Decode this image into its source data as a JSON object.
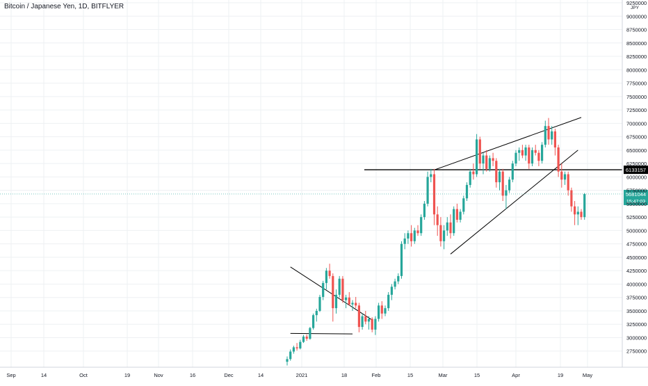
{
  "chart_data": {
    "type": "candlestick",
    "title": "Bitcoin / Japanese Yen, 1D, BITFLYER",
    "currency": "JPY",
    "ylim": [
      2500000,
      9250000
    ],
    "y_ticks": [
      2750000,
      3000000,
      3250000,
      3500000,
      3750000,
      4000000,
      4250000,
      4500000,
      4750000,
      5000000,
      5250000,
      5500000,
      5750000,
      6000000,
      6250000,
      6500000,
      6750000,
      7000000,
      7250000,
      7500000,
      7750000,
      8000000,
      8250000,
      8500000,
      8750000,
      9000000,
      9250000
    ],
    "x_ticks": [
      "Sep",
      "14",
      "Oct",
      "19",
      "Nov",
      "16",
      "Dec",
      "14",
      "2021",
      "18",
      "Feb",
      "15",
      "Mar",
      "15",
      "Apr",
      "19",
      "May"
    ],
    "grid": true,
    "colors": {
      "up": "#26a69a",
      "down": "#ef5350",
      "line": "#000000"
    },
    "horizontal_level": {
      "value": 6133157,
      "label": "6133157"
    },
    "last_price": {
      "value": 5681044,
      "label": "5681044",
      "countdown": "15:47:03"
    },
    "candles": [
      {
        "o": 2550000,
        "h": 2650000,
        "l": 2480000,
        "c": 2600000
      },
      {
        "o": 2600000,
        "h": 2780000,
        "l": 2570000,
        "c": 2740000
      },
      {
        "o": 2740000,
        "h": 2850000,
        "l": 2700000,
        "c": 2820000
      },
      {
        "o": 2820000,
        "h": 2900000,
        "l": 2760000,
        "c": 2800000
      },
      {
        "o": 2800000,
        "h": 2960000,
        "l": 2780000,
        "c": 2920000
      },
      {
        "o": 2920000,
        "h": 3050000,
        "l": 2900000,
        "c": 3020000
      },
      {
        "o": 3020000,
        "h": 3060000,
        "l": 2940000,
        "c": 2980000
      },
      {
        "o": 2980000,
        "h": 3200000,
        "l": 2960000,
        "c": 3180000
      },
      {
        "o": 3180000,
        "h": 3450000,
        "l": 3150000,
        "c": 3420000
      },
      {
        "o": 3420000,
        "h": 3540000,
        "l": 3300000,
        "c": 3500000
      },
      {
        "o": 3500000,
        "h": 3800000,
        "l": 3480000,
        "c": 3760000
      },
      {
        "o": 3760000,
        "h": 4060000,
        "l": 3700000,
        "c": 4020000
      },
      {
        "o": 4020000,
        "h": 4300000,
        "l": 3900000,
        "c": 4250000
      },
      {
        "o": 4250000,
        "h": 4380000,
        "l": 4100000,
        "c": 4150000
      },
      {
        "o": 4150000,
        "h": 4200000,
        "l": 3300000,
        "c": 3550000
      },
      {
        "o": 3550000,
        "h": 3900000,
        "l": 3450000,
        "c": 3800000
      },
      {
        "o": 3800000,
        "h": 4150000,
        "l": 3750000,
        "c": 4100000
      },
      {
        "o": 4100000,
        "h": 4150000,
        "l": 3650000,
        "c": 3700000
      },
      {
        "o": 3700000,
        "h": 3800000,
        "l": 3550000,
        "c": 3750000
      },
      {
        "o": 3750000,
        "h": 3850000,
        "l": 3600000,
        "c": 3620000
      },
      {
        "o": 3620000,
        "h": 3700000,
        "l": 3500000,
        "c": 3650000
      },
      {
        "o": 3650000,
        "h": 3760000,
        "l": 3550000,
        "c": 3600000
      },
      {
        "o": 3600000,
        "h": 3650000,
        "l": 3100000,
        "c": 3200000
      },
      {
        "o": 3200000,
        "h": 3450000,
        "l": 3150000,
        "c": 3400000
      },
      {
        "o": 3400000,
        "h": 3500000,
        "l": 3250000,
        "c": 3300000
      },
      {
        "o": 3300000,
        "h": 3400000,
        "l": 3150000,
        "c": 3350000
      },
      {
        "o": 3350000,
        "h": 3380000,
        "l": 3100000,
        "c": 3150000
      },
      {
        "o": 3150000,
        "h": 3400000,
        "l": 3050000,
        "c": 3350000
      },
      {
        "o": 3350000,
        "h": 3650000,
        "l": 3300000,
        "c": 3600000
      },
      {
        "o": 3600000,
        "h": 3680000,
        "l": 3350000,
        "c": 3450000
      },
      {
        "o": 3450000,
        "h": 3600000,
        "l": 3400000,
        "c": 3550000
      },
      {
        "o": 3550000,
        "h": 3850000,
        "l": 3500000,
        "c": 3800000
      },
      {
        "o": 3800000,
        "h": 4000000,
        "l": 3700000,
        "c": 3950000
      },
      {
        "o": 3950000,
        "h": 4100000,
        "l": 3900000,
        "c": 4050000
      },
      {
        "o": 4050000,
        "h": 4200000,
        "l": 4000000,
        "c": 4150000
      },
      {
        "o": 4150000,
        "h": 4800000,
        "l": 4100000,
        "c": 4750000
      },
      {
        "o": 4750000,
        "h": 4950000,
        "l": 4650000,
        "c": 4850000
      },
      {
        "o": 4850000,
        "h": 5000000,
        "l": 4750000,
        "c": 4950000
      },
      {
        "o": 4950000,
        "h": 5100000,
        "l": 4700000,
        "c": 4800000
      },
      {
        "o": 4800000,
        "h": 5050000,
        "l": 4750000,
        "c": 5000000
      },
      {
        "o": 5000000,
        "h": 5100000,
        "l": 4900000,
        "c": 4950000
      },
      {
        "o": 4950000,
        "h": 5300000,
        "l": 4900000,
        "c": 5250000
      },
      {
        "o": 5250000,
        "h": 5550000,
        "l": 5200000,
        "c": 5500000
      },
      {
        "o": 5500000,
        "h": 6100000,
        "l": 5450000,
        "c": 6000000
      },
      {
        "o": 6000000,
        "h": 6150000,
        "l": 5900000,
        "c": 6050000
      },
      {
        "o": 6050000,
        "h": 6150000,
        "l": 5100000,
        "c": 5300000
      },
      {
        "o": 5300000,
        "h": 5450000,
        "l": 4900000,
        "c": 5100000
      },
      {
        "o": 5100000,
        "h": 5250000,
        "l": 4700000,
        "c": 4800000
      },
      {
        "o": 4800000,
        "h": 5100000,
        "l": 4650000,
        "c": 5000000
      },
      {
        "o": 5000000,
        "h": 5250000,
        "l": 4900000,
        "c": 5150000
      },
      {
        "o": 5150000,
        "h": 5300000,
        "l": 4850000,
        "c": 4950000
      },
      {
        "o": 4950000,
        "h": 5450000,
        "l": 4900000,
        "c": 5400000
      },
      {
        "o": 5400000,
        "h": 5500000,
        "l": 5150000,
        "c": 5200000
      },
      {
        "o": 5200000,
        "h": 5400000,
        "l": 5150000,
        "c": 5350000
      },
      {
        "o": 5350000,
        "h": 5650000,
        "l": 5300000,
        "c": 5600000
      },
      {
        "o": 5600000,
        "h": 5900000,
        "l": 5550000,
        "c": 5850000
      },
      {
        "o": 5850000,
        "h": 6150000,
        "l": 5800000,
        "c": 6100000
      },
      {
        "o": 6100000,
        "h": 6250000,
        "l": 5950000,
        "c": 6050000
      },
      {
        "o": 6050000,
        "h": 6800000,
        "l": 6000000,
        "c": 6700000
      },
      {
        "o": 6700000,
        "h": 6750000,
        "l": 6150000,
        "c": 6250000
      },
      {
        "o": 6250000,
        "h": 6450000,
        "l": 6050000,
        "c": 6400000
      },
      {
        "o": 6400000,
        "h": 6500000,
        "l": 6100000,
        "c": 6150000
      },
      {
        "o": 6150000,
        "h": 6400000,
        "l": 6100000,
        "c": 6350000
      },
      {
        "o": 6350000,
        "h": 6450000,
        "l": 6200000,
        "c": 6300000
      },
      {
        "o": 6300000,
        "h": 6350000,
        "l": 5800000,
        "c": 5900000
      },
      {
        "o": 5900000,
        "h": 6150000,
        "l": 5750000,
        "c": 6100000
      },
      {
        "o": 6100000,
        "h": 6150000,
        "l": 5550000,
        "c": 5650000
      },
      {
        "o": 5650000,
        "h": 5850000,
        "l": 5400000,
        "c": 5750000
      },
      {
        "o": 5750000,
        "h": 6000000,
        "l": 5700000,
        "c": 5950000
      },
      {
        "o": 5950000,
        "h": 6300000,
        "l": 5900000,
        "c": 6250000
      },
      {
        "o": 6250000,
        "h": 6500000,
        "l": 6200000,
        "c": 6450000
      },
      {
        "o": 6450000,
        "h": 6550000,
        "l": 6300000,
        "c": 6500000
      },
      {
        "o": 6500000,
        "h": 6600000,
        "l": 6350000,
        "c": 6400000
      },
      {
        "o": 6400000,
        "h": 6600000,
        "l": 6300000,
        "c": 6550000
      },
      {
        "o": 6550000,
        "h": 6600000,
        "l": 6150000,
        "c": 6250000
      },
      {
        "o": 6250000,
        "h": 6550000,
        "l": 6200000,
        "c": 6500000
      },
      {
        "o": 6500000,
        "h": 6600000,
        "l": 6400000,
        "c": 6450000
      },
      {
        "o": 6450000,
        "h": 6500000,
        "l": 6200000,
        "c": 6300000
      },
      {
        "o": 6300000,
        "h": 6650000,
        "l": 6250000,
        "c": 6600000
      },
      {
        "o": 6600000,
        "h": 7050000,
        "l": 6550000,
        "c": 6950000
      },
      {
        "o": 6950000,
        "h": 7100000,
        "l": 6600000,
        "c": 6700000
      },
      {
        "o": 6700000,
        "h": 6950000,
        "l": 6600000,
        "c": 6850000
      },
      {
        "o": 6850000,
        "h": 6900000,
        "l": 6400000,
        "c": 6550000
      },
      {
        "o": 6550000,
        "h": 6600000,
        "l": 6000000,
        "c": 6100000
      },
      {
        "o": 6100000,
        "h": 6250000,
        "l": 5800000,
        "c": 5950000
      },
      {
        "o": 5950000,
        "h": 6100000,
        "l": 5850000,
        "c": 6050000
      },
      {
        "o": 6050000,
        "h": 6100000,
        "l": 5650000,
        "c": 5750000
      },
      {
        "o": 5750000,
        "h": 5800000,
        "l": 5350000,
        "c": 5450000
      },
      {
        "o": 5450000,
        "h": 5550000,
        "l": 5100000,
        "c": 5300000
      },
      {
        "o": 5300000,
        "h": 5450000,
        "l": 5100000,
        "c": 5350000
      },
      {
        "o": 5350000,
        "h": 5400000,
        "l": 5200000,
        "c": 5250000
      },
      {
        "o": 5250000,
        "h": 5700000,
        "l": 5200000,
        "c": 5681044
      }
    ],
    "trendlines": [
      {
        "from": [
          1,
          4320000
        ],
        "to": [
          26,
          3330000
        ]
      },
      {
        "from": [
          1,
          3080000
        ],
        "to": [
          20,
          3070000
        ]
      },
      {
        "from": [
          45,
          6130000
        ],
        "to": [
          90,
          7110000
        ]
      },
      {
        "from": [
          50,
          4560000
        ],
        "to": [
          89,
          6500000
        ]
      }
    ]
  }
}
